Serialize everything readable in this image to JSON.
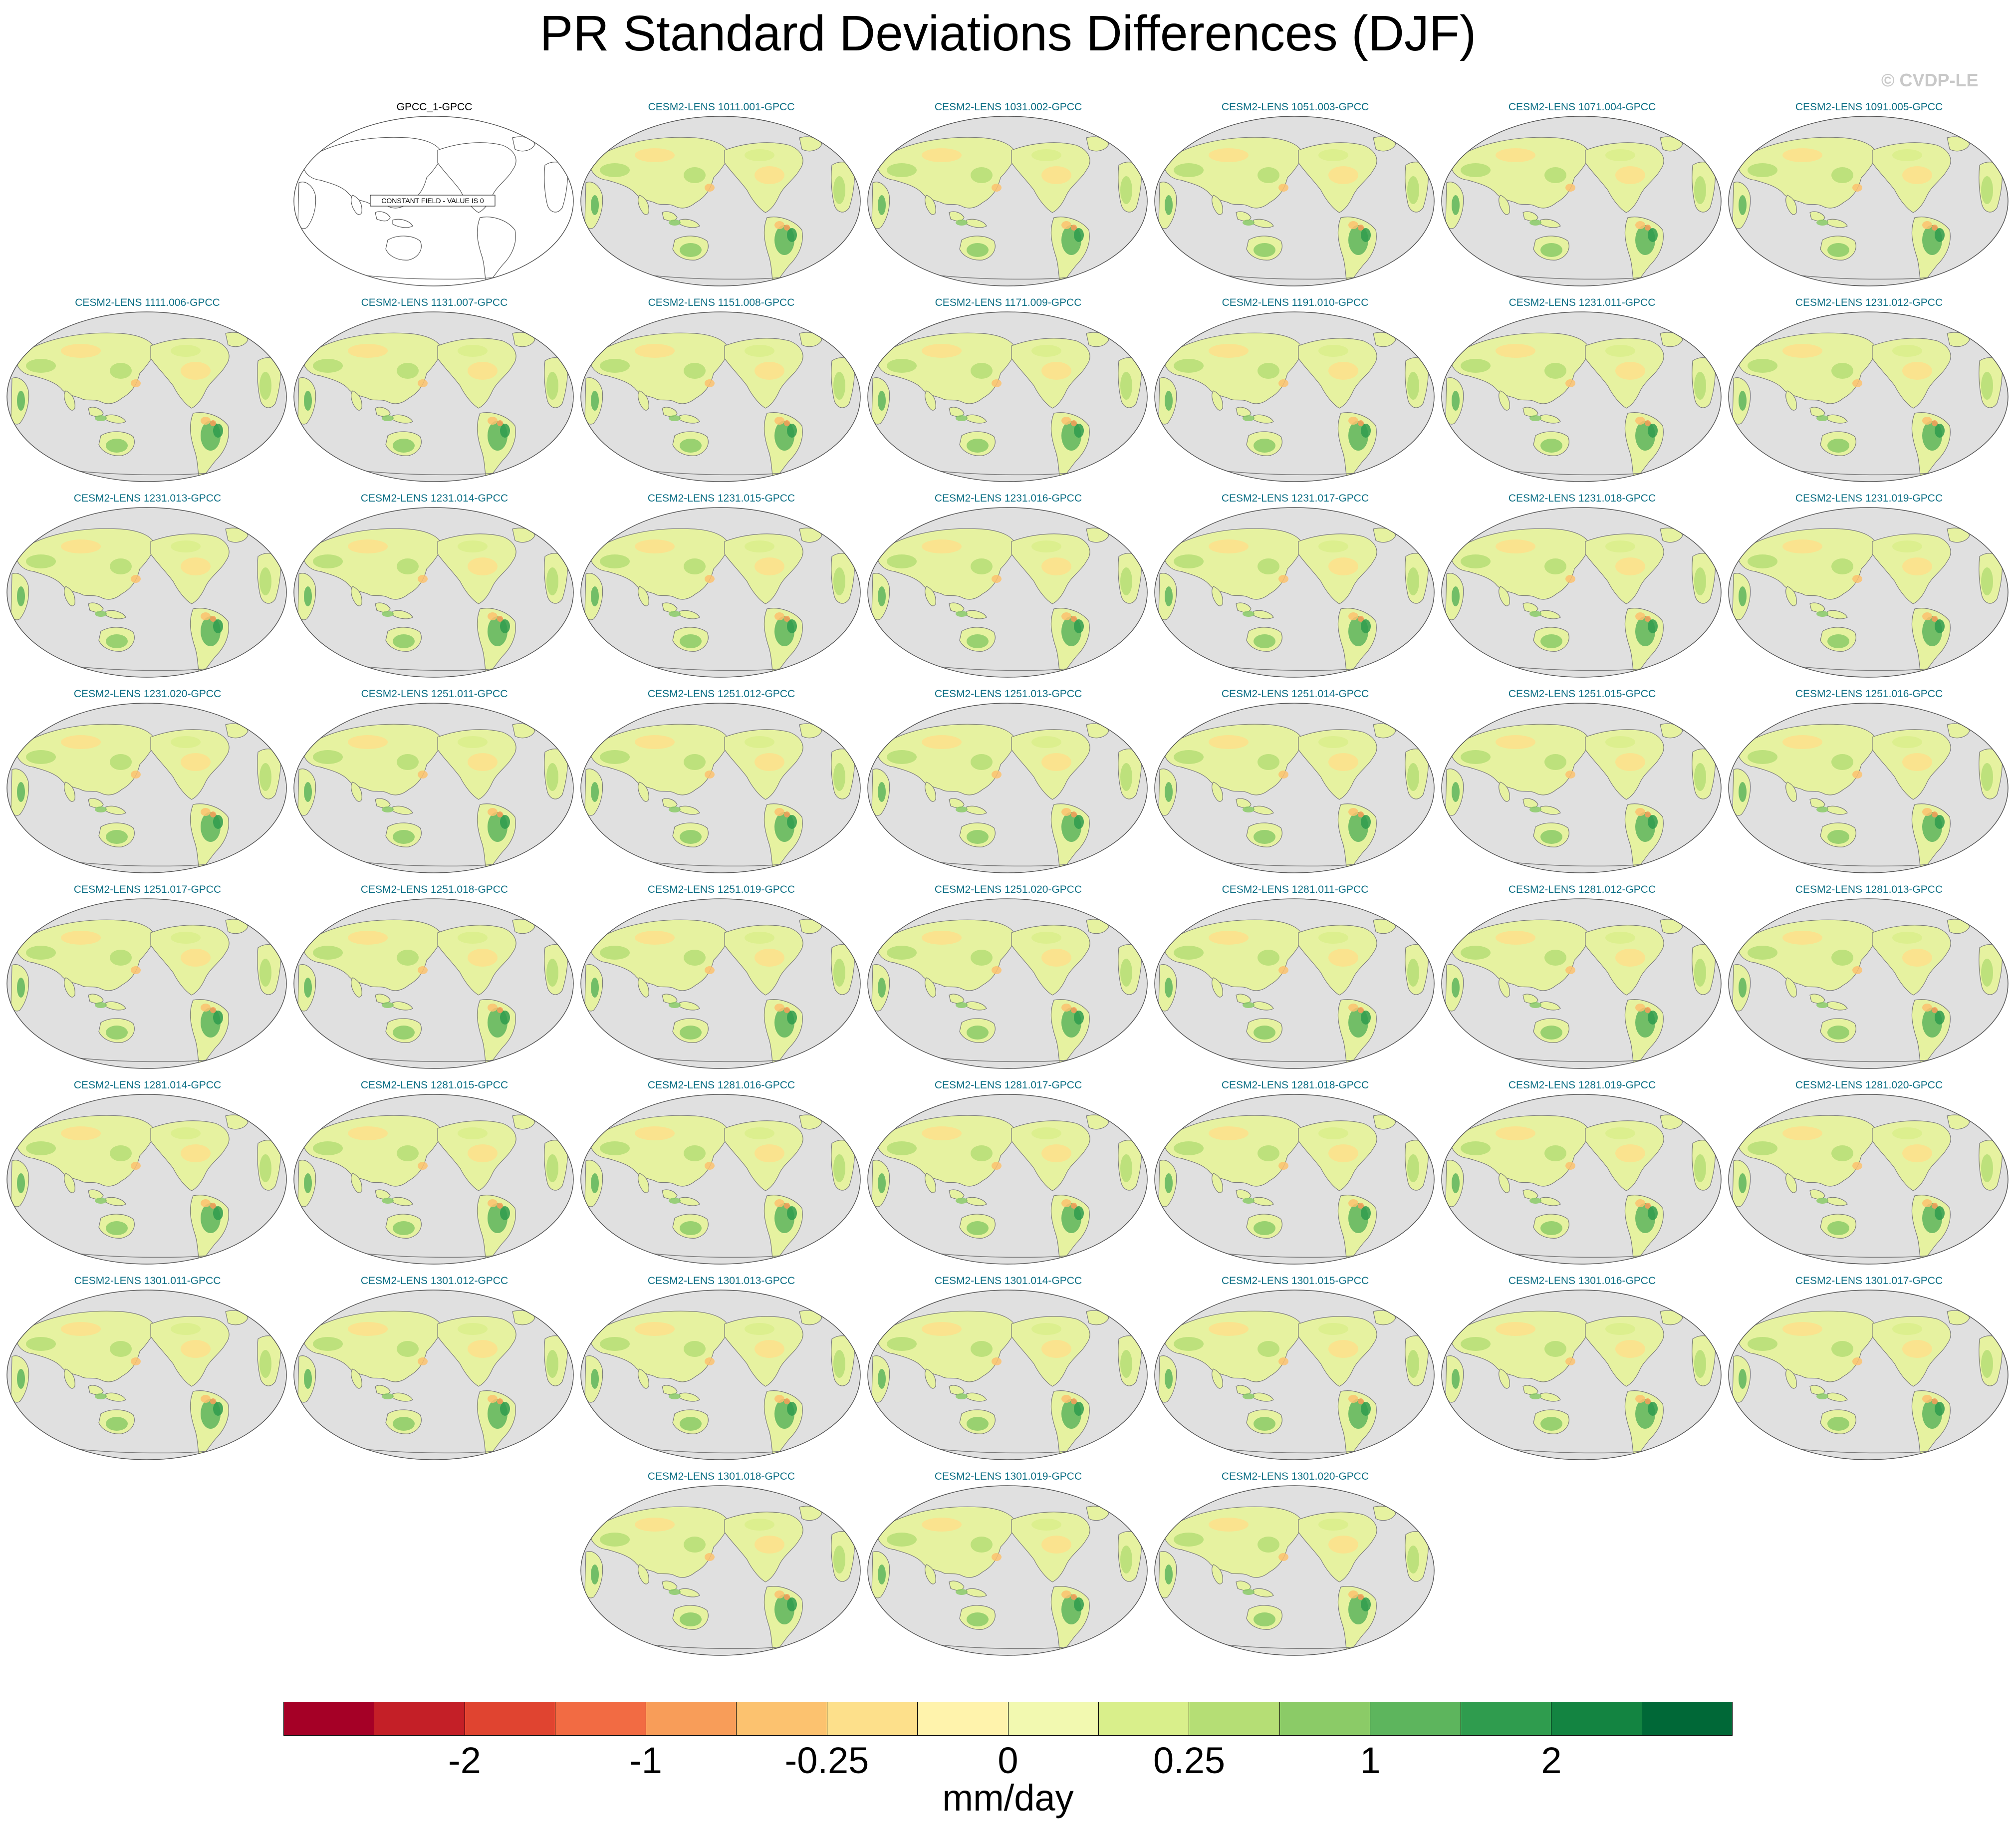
{
  "figure": {
    "title": "PR Standard Deviations Differences (DJF)",
    "watermark": "© CVDP-LE",
    "units": "mm/day",
    "projection": "Robinson, Pacific-centered",
    "ocean_color": "#e0e0e0",
    "land_outline_color": "#7a7a7a"
  },
  "panels": [
    {
      "title": "GPCC_1-GPCC",
      "kind": "constant",
      "note": "CONSTANT FIELD - VALUE IS 0"
    },
    {
      "title": "CESM2-LENS 1011.001-GPCC",
      "kind": "diff"
    },
    {
      "title": "CESM2-LENS 1031.002-GPCC",
      "kind": "diff"
    },
    {
      "title": "CESM2-LENS 1051.003-GPCC",
      "kind": "diff"
    },
    {
      "title": "CESM2-LENS 1071.004-GPCC",
      "kind": "diff"
    },
    {
      "title": "CESM2-LENS 1091.005-GPCC",
      "kind": "diff"
    },
    {
      "title": "CESM2-LENS 1111.006-GPCC",
      "kind": "diff"
    },
    {
      "title": "CESM2-LENS 1131.007-GPCC",
      "kind": "diff"
    },
    {
      "title": "CESM2-LENS 1151.008-GPCC",
      "kind": "diff"
    },
    {
      "title": "CESM2-LENS 1171.009-GPCC",
      "kind": "diff"
    },
    {
      "title": "CESM2-LENS 1191.010-GPCC",
      "kind": "diff"
    },
    {
      "title": "CESM2-LENS 1231.011-GPCC",
      "kind": "diff"
    },
    {
      "title": "CESM2-LENS 1231.012-GPCC",
      "kind": "diff"
    },
    {
      "title": "CESM2-LENS 1231.013-GPCC",
      "kind": "diff"
    },
    {
      "title": "CESM2-LENS 1231.014-GPCC",
      "kind": "diff"
    },
    {
      "title": "CESM2-LENS 1231.015-GPCC",
      "kind": "diff"
    },
    {
      "title": "CESM2-LENS 1231.016-GPCC",
      "kind": "diff"
    },
    {
      "title": "CESM2-LENS 1231.017-GPCC",
      "kind": "diff"
    },
    {
      "title": "CESM2-LENS 1231.018-GPCC",
      "kind": "diff"
    },
    {
      "title": "CESM2-LENS 1231.019-GPCC",
      "kind": "diff"
    },
    {
      "title": "CESM2-LENS 1231.020-GPCC",
      "kind": "diff"
    },
    {
      "title": "CESM2-LENS 1251.011-GPCC",
      "kind": "diff"
    },
    {
      "title": "CESM2-LENS 1251.012-GPCC",
      "kind": "diff"
    },
    {
      "title": "CESM2-LENS 1251.013-GPCC",
      "kind": "diff"
    },
    {
      "title": "CESM2-LENS 1251.014-GPCC",
      "kind": "diff"
    },
    {
      "title": "CESM2-LENS 1251.015-GPCC",
      "kind": "diff"
    },
    {
      "title": "CESM2-LENS 1251.016-GPCC",
      "kind": "diff"
    },
    {
      "title": "CESM2-LENS 1251.017-GPCC",
      "kind": "diff"
    },
    {
      "title": "CESM2-LENS 1251.018-GPCC",
      "kind": "diff"
    },
    {
      "title": "CESM2-LENS 1251.019-GPCC",
      "kind": "diff"
    },
    {
      "title": "CESM2-LENS 1251.020-GPCC",
      "kind": "diff"
    },
    {
      "title": "CESM2-LENS 1281.011-GPCC",
      "kind": "diff"
    },
    {
      "title": "CESM2-LENS 1281.012-GPCC",
      "kind": "diff"
    },
    {
      "title": "CESM2-LENS 1281.013-GPCC",
      "kind": "diff"
    },
    {
      "title": "CESM2-LENS 1281.014-GPCC",
      "kind": "diff"
    },
    {
      "title": "CESM2-LENS 1281.015-GPCC",
      "kind": "diff"
    },
    {
      "title": "CESM2-LENS 1281.016-GPCC",
      "kind": "diff"
    },
    {
      "title": "CESM2-LENS 1281.017-GPCC",
      "kind": "diff"
    },
    {
      "title": "CESM2-LENS 1281.018-GPCC",
      "kind": "diff"
    },
    {
      "title": "CESM2-LENS 1281.019-GPCC",
      "kind": "diff"
    },
    {
      "title": "CESM2-LENS 1281.020-GPCC",
      "kind": "diff"
    },
    {
      "title": "CESM2-LENS 1301.011-GPCC",
      "kind": "diff"
    },
    {
      "title": "CESM2-LENS 1301.012-GPCC",
      "kind": "diff"
    },
    {
      "title": "CESM2-LENS 1301.013-GPCC",
      "kind": "diff"
    },
    {
      "title": "CESM2-LENS 1301.014-GPCC",
      "kind": "diff"
    },
    {
      "title": "CESM2-LENS 1301.015-GPCC",
      "kind": "diff"
    },
    {
      "title": "CESM2-LENS 1301.016-GPCC",
      "kind": "diff"
    },
    {
      "title": "CESM2-LENS 1301.017-GPCC",
      "kind": "diff"
    },
    {
      "title": "CESM2-LENS 1301.018-GPCC",
      "kind": "diff"
    },
    {
      "title": "CESM2-LENS 1301.019-GPCC",
      "kind": "diff"
    },
    {
      "title": "CESM2-LENS 1301.020-GPCC",
      "kind": "diff"
    }
  ],
  "colorbar": {
    "colors": [
      "#a50026",
      "#c41f27",
      "#e04430",
      "#f26b43",
      "#f89d59",
      "#fcc26f",
      "#fde08b",
      "#fff3ac",
      "#f2f9b0",
      "#d9ef8b",
      "#b5de75",
      "#8bcb67",
      "#5db55d",
      "#2f9c4e",
      "#138441",
      "#006837"
    ],
    "tick_labels": [
      "-2",
      "-1",
      "-0.25",
      "0",
      "0.25",
      "1",
      "2"
    ],
    "tick_boundaries": [
      2,
      4,
      6,
      8,
      10,
      12,
      14
    ]
  }
}
